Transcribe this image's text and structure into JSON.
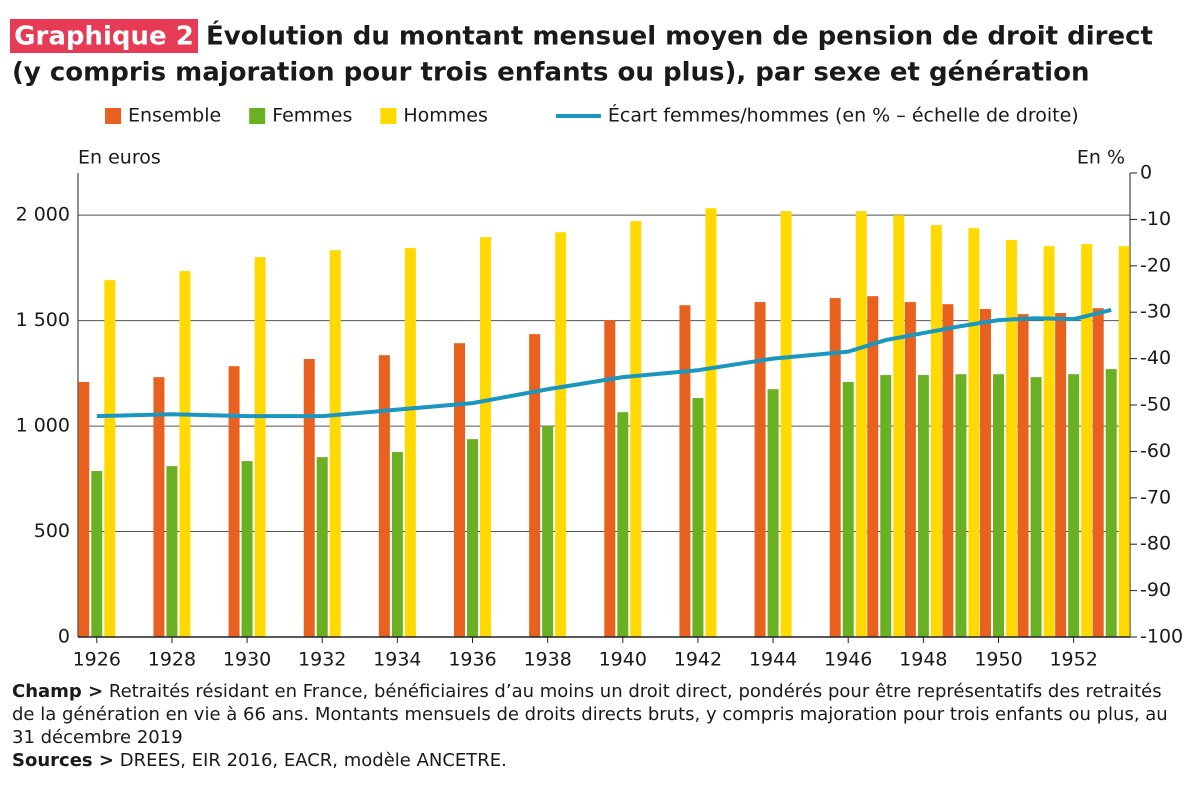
{
  "chart_data": {
    "type": "bar",
    "badge": "Graphique 2",
    "title": [
      "Évolution du montant mensuel moyen de pension de droit direct",
      "(y compris majoration pour trois enfants ou plus), par sexe et génération"
    ],
    "y_label": "En euros",
    "y2_label": "En %",
    "x": [
      1926,
      1928,
      1930,
      1932,
      1934,
      1936,
      1938,
      1940,
      1942,
      1944,
      1946,
      1947,
      1948,
      1949,
      1950,
      1951,
      1952,
      1953
    ],
    "xlim": [
      1925.5,
      1953.5
    ],
    "xticks": [
      1926,
      1928,
      1930,
      1932,
      1934,
      1936,
      1938,
      1940,
      1942,
      1944,
      1946,
      1948,
      1950,
      1952
    ],
    "ylim": [
      0,
      2200
    ],
    "yticks": [
      0,
      500,
      {
        "value": 1000,
        "label": "1 000"
      },
      {
        "value": 1500,
        "label": "1 500"
      },
      {
        "value": 2000,
        "label": "2 000"
      }
    ],
    "y2lim": [
      -100,
      0
    ],
    "y2ticks": [
      0,
      -10,
      -20,
      -30,
      -40,
      -50,
      -60,
      -70,
      -80,
      -90,
      -100
    ],
    "grid": true,
    "series": [
      {
        "name": "Ensemble",
        "type": "bar",
        "color": "#e8611e",
        "values": [
          1209,
          1232,
          1284,
          1318,
          1336,
          1393,
          1436,
          1502,
          1573,
          1588,
          1607,
          1616,
          1588,
          1578,
          1555,
          1531,
          1536,
          1559
        ]
      },
      {
        "name": "Femmes",
        "type": "bar",
        "color": "#6ab023",
        "values": [
          787,
          810,
          834,
          853,
          877,
          938,
          1000,
          1066,
          1133,
          1175,
          1209,
          1242,
          1242,
          1246,
          1246,
          1232,
          1246,
          1270
        ]
      },
      {
        "name": "Hommes",
        "type": "bar",
        "color": "#ffd900",
        "values": [
          1692,
          1735,
          1801,
          1834,
          1844,
          1896,
          1919,
          1972,
          2033,
          2019,
          2019,
          2000,
          1953,
          1938,
          1882,
          1853,
          1863,
          1853
        ]
      },
      {
        "name": "Écart femmes/hommes (en % – échelle de droite)",
        "type": "line",
        "axis": "y2",
        "color": "#1a96bf",
        "values": [
          -52.4,
          -52,
          -52.4,
          -52.4,
          -51,
          -49.6,
          -46.6,
          -44,
          -42.5,
          -40,
          -38.5,
          -36,
          -34.5,
          -33,
          -31.7,
          -31.3,
          -31.5,
          -29.5
        ]
      }
    ],
    "notes": [
      {
        "label": "Champ >",
        "text": "Retraités résidant en France, bénéficiaires d’au moins un droit direct, pondérés pour être représentatifs des retraités de la génération en vie à 66 ans. Montants mensuels de droits directs bruts, y compris majoration pour trois enfants ou plus, au 31 décembre 2019"
      },
      {
        "label": "Sources >",
        "text": "DREES, EIR 2016, EACR, modèle ANCETRE."
      }
    ]
  }
}
